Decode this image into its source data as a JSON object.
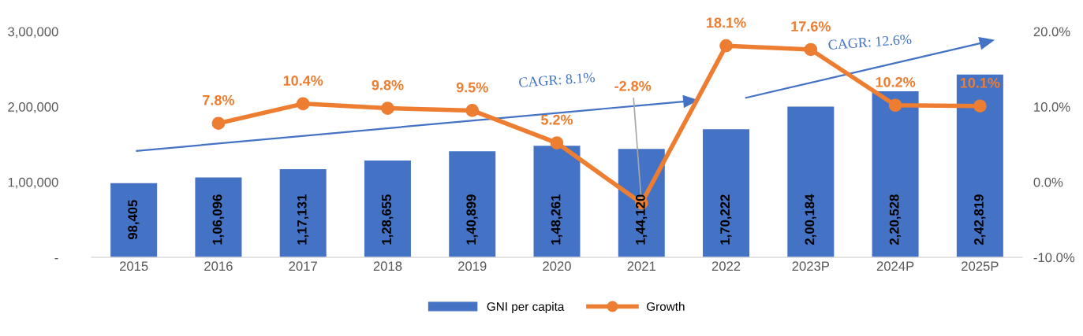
{
  "chart_data": {
    "type": "bar",
    "categories": [
      "2015",
      "2016",
      "2017",
      "2018",
      "2019",
      "2020",
      "2021",
      "2022",
      "2023P",
      "2024P",
      "2025P"
    ],
    "series": [
      {
        "name": "GNI per capita",
        "color": "#4472c4",
        "values": [
          98405,
          106096,
          117131,
          128655,
          140899,
          148261,
          144120,
          170222,
          200184,
          220528,
          242819
        ],
        "value_labels": [
          "98,405",
          "1,06,096",
          "1,17,131",
          "1,28,655",
          "1,40,899",
          "1,48,261",
          "1,44,120",
          "1,70,222",
          "2,00,184",
          "2,20,528",
          "2,42,819"
        ]
      },
      {
        "name": "Growth",
        "type": "line",
        "axis": "y2",
        "color": "#ed7d31",
        "marker": "circle",
        "values": [
          null,
          7.8,
          10.4,
          9.8,
          9.5,
          5.2,
          -2.8,
          18.1,
          17.6,
          10.2,
          10.1
        ],
        "value_labels": [
          null,
          "7.8%",
          "10.4%",
          "9.8%",
          "9.5%",
          "5.2%",
          "-2.8%",
          "18.1%",
          "17.6%",
          "10.2%",
          "10.1%"
        ]
      }
    ],
    "ylim": [
      0,
      300000
    ],
    "yticks": [
      {
        "value": 0,
        "label": "-"
      },
      {
        "value": 100000,
        "label": "1,00,000"
      },
      {
        "value": 200000,
        "label": "2,00,000"
      },
      {
        "value": 300000,
        "label": "3,00,000"
      }
    ],
    "y2lim": [
      -10,
      20
    ],
    "y2ticks": [
      {
        "value": -10,
        "label": "-10.0%"
      },
      {
        "value": 0,
        "label": "0.0%"
      },
      {
        "value": 10,
        "label": "10.0%"
      },
      {
        "value": 20,
        "label": "20.0%"
      }
    ],
    "annotations": [
      "CAGR: 8.1%",
      "CAGR: 12.6%"
    ],
    "grid": false,
    "legend": "bottom"
  }
}
